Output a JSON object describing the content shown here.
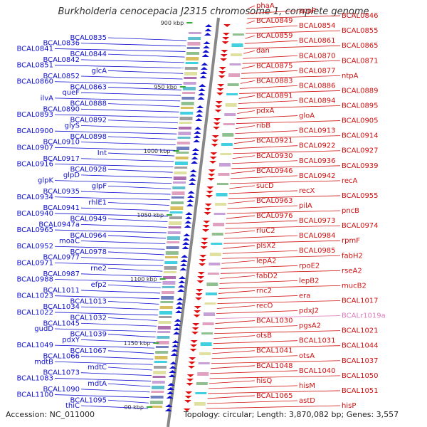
{
  "title": "Burkholderia cenocepacia J2315 chromosome 1, complete genome",
  "accession": "Accession: NC_011000",
  "summary": "Topology: circular; Length: 3,870,082 bp; Genes: 3,557",
  "colors": {
    "minus_strand": "#1010d0",
    "plus_strand": "#d01010",
    "rna": "#e080c0",
    "backbone": "#888888",
    "tick": "#33aa33"
  },
  "ticks": [
    "900 kbp",
    "950 kbp",
    "1000 kbp",
    "1050 kbp",
    "1100 kbp",
    "1150 kbp",
    "00 kbp"
  ],
  "left_labels": [
    "BCAL0835",
    "BCAL0836",
    "BCAL0841",
    "BCAL0844",
    "BCAL0842",
    "BCAL0851",
    "glcA",
    "BCAL0852",
    "BCAL0860",
    "BCAL0863",
    "queF",
    "ilvA",
    "BCAL0888",
    "BCAL0890",
    "BCAL0893",
    "BCAL0892",
    "glyS",
    "BCAL0900",
    "BCAL0898",
    "BCAL0910",
    "BCAL0907",
    "Int",
    "BCAL0917",
    "BCAL0916",
    "BCAL0928",
    "glpD",
    "glpK",
    "glpF",
    "BCAL0935",
    "BCAL0934",
    "rhlE1",
    "BCAL0941",
    "BCAL0940",
    "BCAL0949",
    "BCAL0947a",
    "BCAL0965",
    "BCAL0964",
    "moaC",
    "BCAL0952",
    "BCAL0978",
    "BCAL0977",
    "BCAL0971",
    "rne2",
    "BCAL0987",
    "BCAL0988",
    "efp2",
    "BCAL1011",
    "BCAL1023",
    "BCAL1013",
    "BCAL1034",
    "BCAL1022",
    "BCAL1032",
    "BCAL1045",
    "gudD",
    "BCAL1039",
    "pdxY",
    "BCAL1049",
    "BCAL1067",
    "BCAL1066",
    "mdtB",
    "mdtC",
    "BCAL1073",
    "BCAL1083",
    "mdtA",
    "BCAL1090",
    "BCAL1100",
    "BCAL1095",
    "thiC"
  ],
  "right_labels": [
    "phaA",
    "acpP",
    "BCAL0846",
    "BCAL0849",
    "BCAL0854",
    "BCAL0855",
    "BCAL0859",
    "BCAL0861",
    "BCAL0865",
    "dan",
    "BCAL0870",
    "BCAL0871",
    "BCAL0875",
    "BCAL0877",
    "ntpA",
    "BCAL0883",
    "BCAL0886",
    "BCAL0889",
    "BCAL0891",
    "BCAL0894",
    "BCAL0895",
    "pdxA",
    "gloA",
    "BCAL0905",
    "ribB",
    "BCAL0913",
    "BCAL0914",
    "BCAL0921",
    "BCAL0922",
    "BCAL0927",
    "BCAL0930",
    "BCAL0936",
    "BCAL0939",
    "BCAL0946",
    "BCAL0942",
    "recA",
    "sucD",
    "recX",
    "BCAL0955",
    "BCAL0963",
    "pilA",
    "pncB",
    "BCAL0976",
    "BCAL0973",
    "BCAL0974",
    "rluC2",
    "BCAL0984",
    "rpmF",
    "plsX2",
    "BCAL0985",
    "fabH2",
    "lepA2",
    "rpoE2",
    "rseA2",
    "fabD2",
    "lepB2",
    "mucB2",
    "rnc2",
    "era",
    "BCAL1017",
    "recO",
    "pdxJ2",
    "BCALr1019a",
    "BCAL1030",
    "pgsA2",
    "BCAL1021",
    "otsB",
    "BCAL1031",
    "BCAL1044",
    "BCAL1041",
    "otsA",
    "BCAL1037",
    "BCAL1048",
    "BCAL1040",
    "BCAL1050",
    "hisQ",
    "hisM",
    "BCAL1051",
    "BCAL1065",
    "astD",
    "hisP"
  ]
}
